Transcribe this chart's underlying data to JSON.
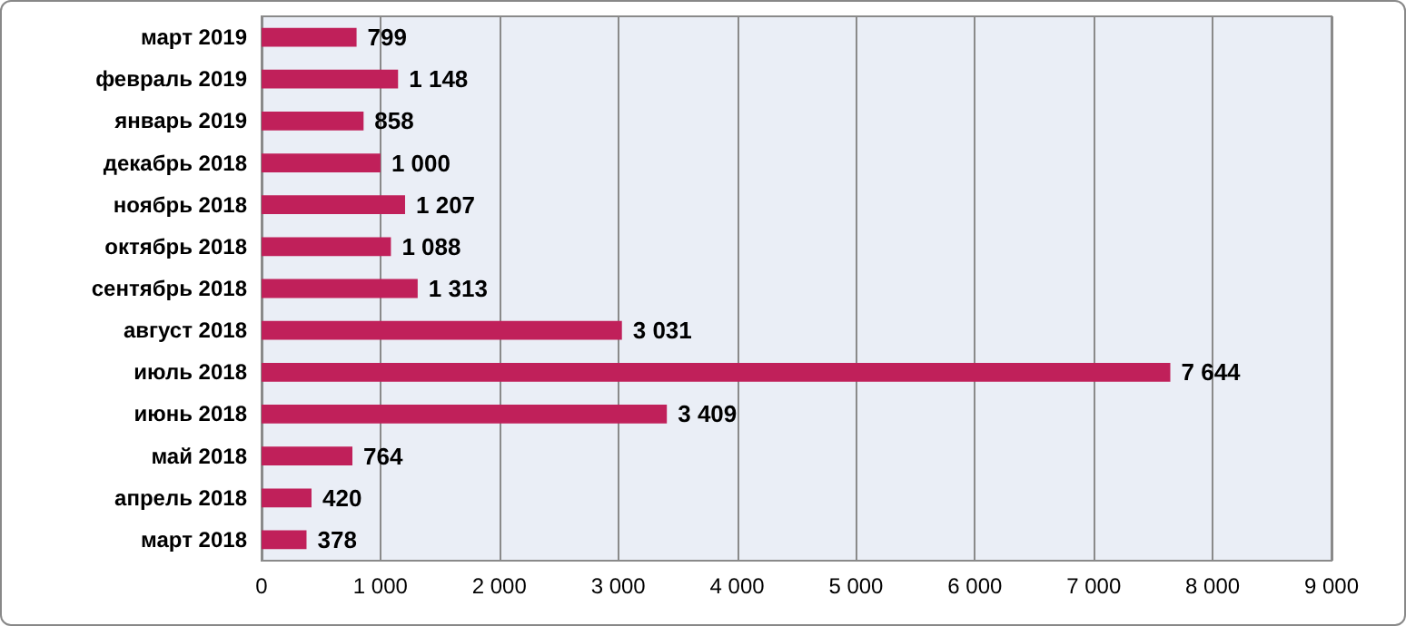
{
  "chart_data": {
    "type": "bar",
    "orientation": "horizontal",
    "categories": [
      "март 2019",
      "февраль 2019",
      "январь 2019",
      "декабрь 2018",
      "ноябрь 2018",
      "октябрь 2018",
      "сентябрь 2018",
      "август 2018",
      "июль 2018",
      "июнь 2018",
      "май 2018",
      "апрель 2018",
      "март 2018"
    ],
    "values": [
      799,
      1148,
      858,
      1000,
      1207,
      1088,
      1313,
      3031,
      7644,
      3409,
      764,
      420,
      378
    ],
    "value_labels": [
      "799",
      "1 148",
      "858",
      "1 000",
      "1 207",
      "1 088",
      "1 313",
      "3 031",
      "7 644",
      "3 409",
      "764",
      "420",
      "378"
    ],
    "color": "#c0205a",
    "xlim": [
      0,
      9000
    ],
    "xticks": [
      0,
      {
        "value": 1000,
        "label": "1 000"
      },
      {
        "value": 2000,
        "label": "2 000"
      },
      {
        "value": 3000,
        "label": "3 000"
      },
      {
        "value": 4000,
        "label": "4 000"
      },
      {
        "value": 5000,
        "label": "5 000"
      },
      {
        "value": 6000,
        "label": "6 000"
      },
      {
        "value": 7000,
        "label": "7 000"
      },
      {
        "value": 8000,
        "label": "8 000"
      },
      {
        "value": 9000,
        "label": "9 000"
      }
    ],
    "grid": "x"
  }
}
